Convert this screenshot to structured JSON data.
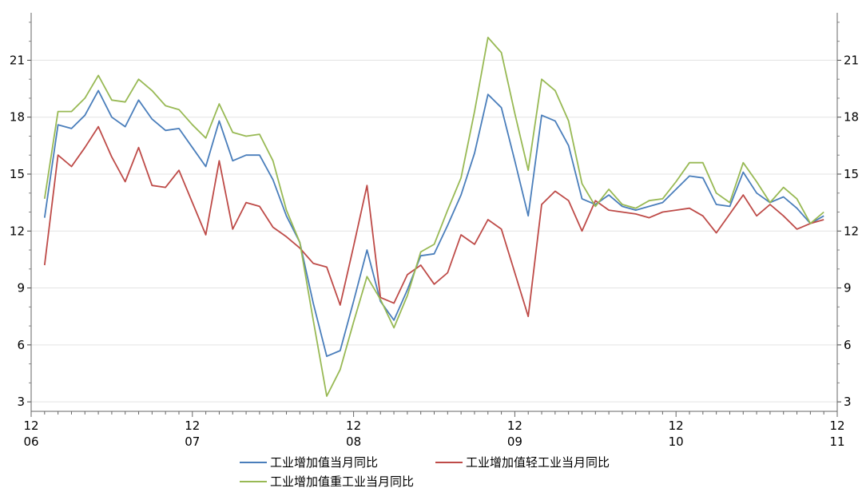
{
  "chart_data": {
    "type": "line",
    "x_ticks": [
      {
        "top": "12",
        "bottom": "06"
      },
      {
        "top": "12",
        "bottom": "07"
      },
      {
        "top": "12",
        "bottom": "08"
      },
      {
        "top": "12",
        "bottom": "09"
      },
      {
        "top": "12",
        "bottom": "10"
      },
      {
        "top": "12",
        "bottom": "11"
      }
    ],
    "y_ticks": [
      3,
      6,
      9,
      12,
      15,
      18,
      21
    ],
    "ylim": [
      2.5,
      23.5
    ],
    "grid": true,
    "legend_position": "bottom",
    "series": [
      {
        "name": "工业增加值当月同比",
        "color": "#4a7ebb",
        "values": [
          12.7,
          17.6,
          17.4,
          18.1,
          19.4,
          18.0,
          17.5,
          18.9,
          17.9,
          17.3,
          17.4,
          16.4,
          15.4,
          17.8,
          15.7,
          16.0,
          16.0,
          14.7,
          12.8,
          11.4,
          8.2,
          5.4,
          5.7,
          8.3,
          11.0,
          8.3,
          7.3,
          8.9,
          10.7,
          10.8,
          12.3,
          13.9,
          16.1,
          19.2,
          18.5,
          15.7,
          12.8,
          18.1,
          17.8,
          16.5,
          13.7,
          13.4,
          13.9,
          13.3,
          13.1,
          13.3,
          13.5,
          14.2,
          14.9,
          14.8,
          13.4,
          13.3,
          15.1,
          14.0,
          13.5,
          13.8,
          13.2,
          12.4,
          12.8
        ]
      },
      {
        "name": "工业增加值轻工业当月同比",
        "color": "#be4b48",
        "values": [
          10.2,
          16.0,
          15.4,
          16.4,
          17.5,
          15.9,
          14.6,
          16.4,
          14.4,
          14.3,
          15.2,
          13.5,
          11.8,
          15.7,
          12.1,
          13.5,
          13.3,
          12.2,
          11.7,
          11.1,
          10.3,
          10.1,
          8.1,
          11.2,
          14.4,
          8.5,
          8.2,
          9.7,
          10.2,
          9.2,
          9.8,
          11.8,
          11.3,
          12.6,
          12.1,
          9.8,
          7.5,
          13.4,
          14.1,
          13.6,
          12.0,
          13.6,
          13.1,
          13.0,
          12.9,
          12.7,
          13.0,
          13.1,
          13.2,
          12.8,
          11.9,
          12.9,
          13.9,
          12.8,
          13.4,
          12.8,
          12.1,
          12.4,
          12.6
        ]
      },
      {
        "name": "工业增加值重工业当月同比",
        "color": "#98b954",
        "values": [
          13.7,
          18.3,
          18.3,
          19.0,
          20.2,
          18.9,
          18.8,
          20.0,
          19.4,
          18.6,
          18.4,
          17.6,
          16.9,
          18.7,
          17.2,
          17.0,
          17.1,
          15.7,
          13.1,
          11.4,
          7.3,
          3.3,
          4.7,
          7.2,
          9.6,
          8.4,
          6.9,
          8.6,
          10.9,
          11.3,
          13.1,
          14.8,
          18.3,
          22.2,
          21.4,
          18.2,
          15.2,
          20.0,
          19.4,
          17.8,
          14.5,
          13.3,
          14.2,
          13.4,
          13.2,
          13.6,
          13.7,
          14.6,
          15.6,
          15.6,
          14.0,
          13.5,
          15.6,
          14.6,
          13.5,
          14.3,
          13.7,
          12.4,
          13.0
        ]
      }
    ]
  }
}
